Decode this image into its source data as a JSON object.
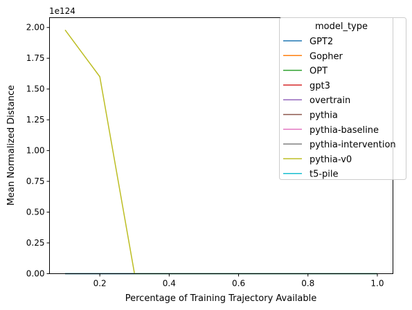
{
  "chart_data": {
    "type": "line",
    "xlabel": "Percentage of Training Trajectory Available",
    "ylabel": "Mean Normalized Distance",
    "offset_label": "1e124",
    "y_scale_factor": 1e+124,
    "xlim": [
      0.055,
      1.045
    ],
    "ylim": [
      0,
      2.08
    ],
    "x_ticks": [
      0.2,
      0.4,
      0.6,
      0.8,
      1.0
    ],
    "x_tick_labels": [
      "0.2",
      "0.4",
      "0.6",
      "0.8",
      "1.0"
    ],
    "y_ticks": [
      0,
      0.25,
      0.5,
      0.75,
      1.0,
      1.25,
      1.5,
      1.75,
      2.0
    ],
    "y_tick_labels": [
      "0.00",
      "0.25",
      "0.50",
      "0.75",
      "1.00",
      "1.25",
      "1.50",
      "1.75",
      "2.00"
    ],
    "grid": false,
    "legend": {
      "title": "model_type",
      "placement": "upper right"
    },
    "series": [
      {
        "name": "GPT2",
        "color": "#1f77b4",
        "x": [
          0.1,
          0.2,
          0.3,
          0.4,
          0.5,
          0.6,
          0.7,
          0.8,
          0.9,
          1.0
        ],
        "y": [
          0,
          0,
          0,
          0,
          0,
          0,
          0,
          0,
          0,
          0
        ]
      },
      {
        "name": "Gopher",
        "color": "#ff7f0e",
        "x": [
          0.1,
          0.2,
          0.3,
          0.4,
          0.5,
          0.6,
          0.7,
          0.8,
          0.9,
          1.0
        ],
        "y": [
          0,
          0,
          0,
          0,
          0,
          0,
          0,
          0,
          0,
          0
        ]
      },
      {
        "name": "OPT",
        "color": "#2ca02c",
        "x": [
          0.1,
          0.2,
          0.3,
          0.4,
          0.5,
          0.6,
          0.7,
          0.8,
          0.9,
          1.0
        ],
        "y": [
          0,
          0,
          0,
          0,
          0,
          0,
          0,
          0,
          0,
          0
        ]
      },
      {
        "name": "gpt3",
        "color": "#d62728",
        "x": [
          0.1,
          0.2,
          0.3,
          0.4,
          0.5,
          0.6,
          0.7,
          0.8,
          0.9,
          1.0
        ],
        "y": [
          0,
          0,
          0,
          0,
          0,
          0,
          0,
          0,
          0,
          0
        ]
      },
      {
        "name": "overtrain",
        "color": "#9467bd",
        "x": [
          0.1,
          0.2,
          0.3,
          0.4,
          0.5,
          0.6,
          0.7,
          0.8,
          0.9,
          1.0
        ],
        "y": [
          0,
          0,
          0,
          0,
          0,
          0,
          0,
          0,
          0,
          0
        ]
      },
      {
        "name": "pythia",
        "color": "#8c564b",
        "x": [
          0.1,
          0.2,
          0.3,
          0.4,
          0.5,
          0.6,
          0.7,
          0.8,
          0.9,
          1.0
        ],
        "y": [
          0,
          0,
          0,
          0,
          0,
          0,
          0,
          0,
          0,
          0
        ]
      },
      {
        "name": "pythia-baseline",
        "color": "#e377c2",
        "x": [
          0.1,
          0.2,
          0.3,
          0.4,
          0.5,
          0.6,
          0.7,
          0.8,
          0.9,
          1.0
        ],
        "y": [
          0,
          0,
          0,
          0,
          0,
          0,
          0,
          0,
          0,
          0
        ]
      },
      {
        "name": "pythia-intervention",
        "color": "#7f7f7f",
        "x": [
          0.1,
          0.2,
          0.3,
          0.4,
          0.5,
          0.6,
          0.7,
          0.8,
          0.9,
          1.0
        ],
        "y": [
          0,
          0,
          0,
          0,
          0,
          0,
          0,
          0,
          0,
          0
        ]
      },
      {
        "name": "pythia-v0",
        "color": "#bcbd22",
        "x": [
          0.1,
          0.2,
          0.3,
          0.4,
          0.5,
          0.6,
          0.7,
          0.8,
          0.9,
          1.0
        ],
        "y": [
          1.98,
          1.6,
          0,
          0,
          0,
          0,
          0,
          0,
          0,
          0
        ]
      },
      {
        "name": "t5-pile",
        "color": "#17becf",
        "x": [
          0.1,
          0.2,
          0.3,
          0.4,
          0.5,
          0.6,
          0.7,
          0.8,
          0.9,
          1.0
        ],
        "y": [
          0,
          0,
          0,
          0,
          0,
          0,
          0,
          0,
          0,
          0
        ]
      }
    ]
  }
}
